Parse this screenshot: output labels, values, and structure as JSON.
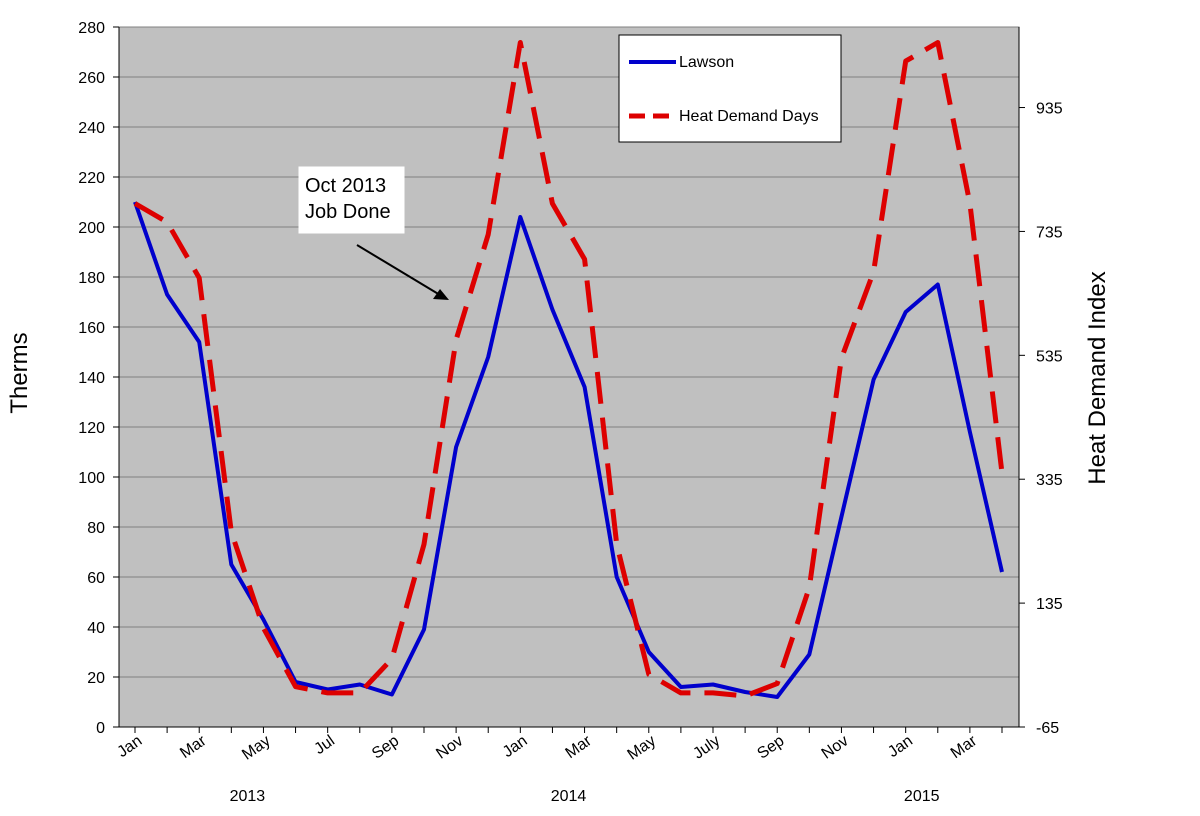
{
  "chart_data": {
    "type": "line",
    "y_axis_left": {
      "label": "Therms",
      "ylim": [
        0,
        280
      ],
      "ticks": [
        0,
        20,
        40,
        60,
        80,
        100,
        120,
        140,
        160,
        180,
        200,
        220,
        240,
        260,
        280
      ]
    },
    "y_axis_right": {
      "label": "Heat Demand Index",
      "ylim": [
        -65,
        1065
      ],
      "ticks": [
        -65,
        135,
        335,
        535,
        735,
        935
      ]
    },
    "x_tick_labels": [
      "Jan",
      "Mar",
      "May",
      "Jul",
      "Sep",
      "Nov",
      "Jan",
      "Mar",
      "May",
      "July",
      "Sep",
      "Nov",
      "Jan",
      "Mar"
    ],
    "year_labels": [
      "2013",
      "2014",
      "2015"
    ],
    "months": [
      "2013-01",
      "2013-02",
      "2013-03",
      "2013-04",
      "2013-05",
      "2013-06",
      "2013-07",
      "2013-08",
      "2013-09",
      "2013-10",
      "2013-11",
      "2013-12",
      "2014-01",
      "2014-02",
      "2014-03",
      "2014-04",
      "2014-05",
      "2014-06",
      "2014-07",
      "2014-08",
      "2014-09",
      "2014-10",
      "2014-11",
      "2014-12",
      "2015-01",
      "2015-02",
      "2015-03",
      "2015-04"
    ],
    "series": [
      {
        "name": "Lawson",
        "axis": "left",
        "color": "#0000cc",
        "style": "solid",
        "values": [
          210,
          173,
          154,
          65,
          43,
          18,
          15,
          17,
          13,
          39,
          112,
          148,
          204,
          167,
          136,
          60,
          30,
          16,
          17,
          14,
          12,
          29,
          84,
          139,
          166,
          177,
          118,
          62
        ]
      },
      {
        "name": "Heat Demand Days",
        "axis": "right",
        "color": "#dd0000",
        "style": "dashed",
        "values": [
          780,
          750,
          660,
          250,
          95,
          0,
          -10,
          -10,
          45,
          230,
          560,
          730,
          1040,
          780,
          690,
          230,
          20,
          -10,
          -10,
          -15,
          5,
          160,
          530,
          670,
          1010,
          1040,
          780,
          345
        ]
      }
    ],
    "annotation": {
      "lines": [
        "Oct 2013",
        "Job Done"
      ]
    },
    "legend_placement": "top-right",
    "grid": true,
    "plot_background": "#c0c0c0"
  }
}
